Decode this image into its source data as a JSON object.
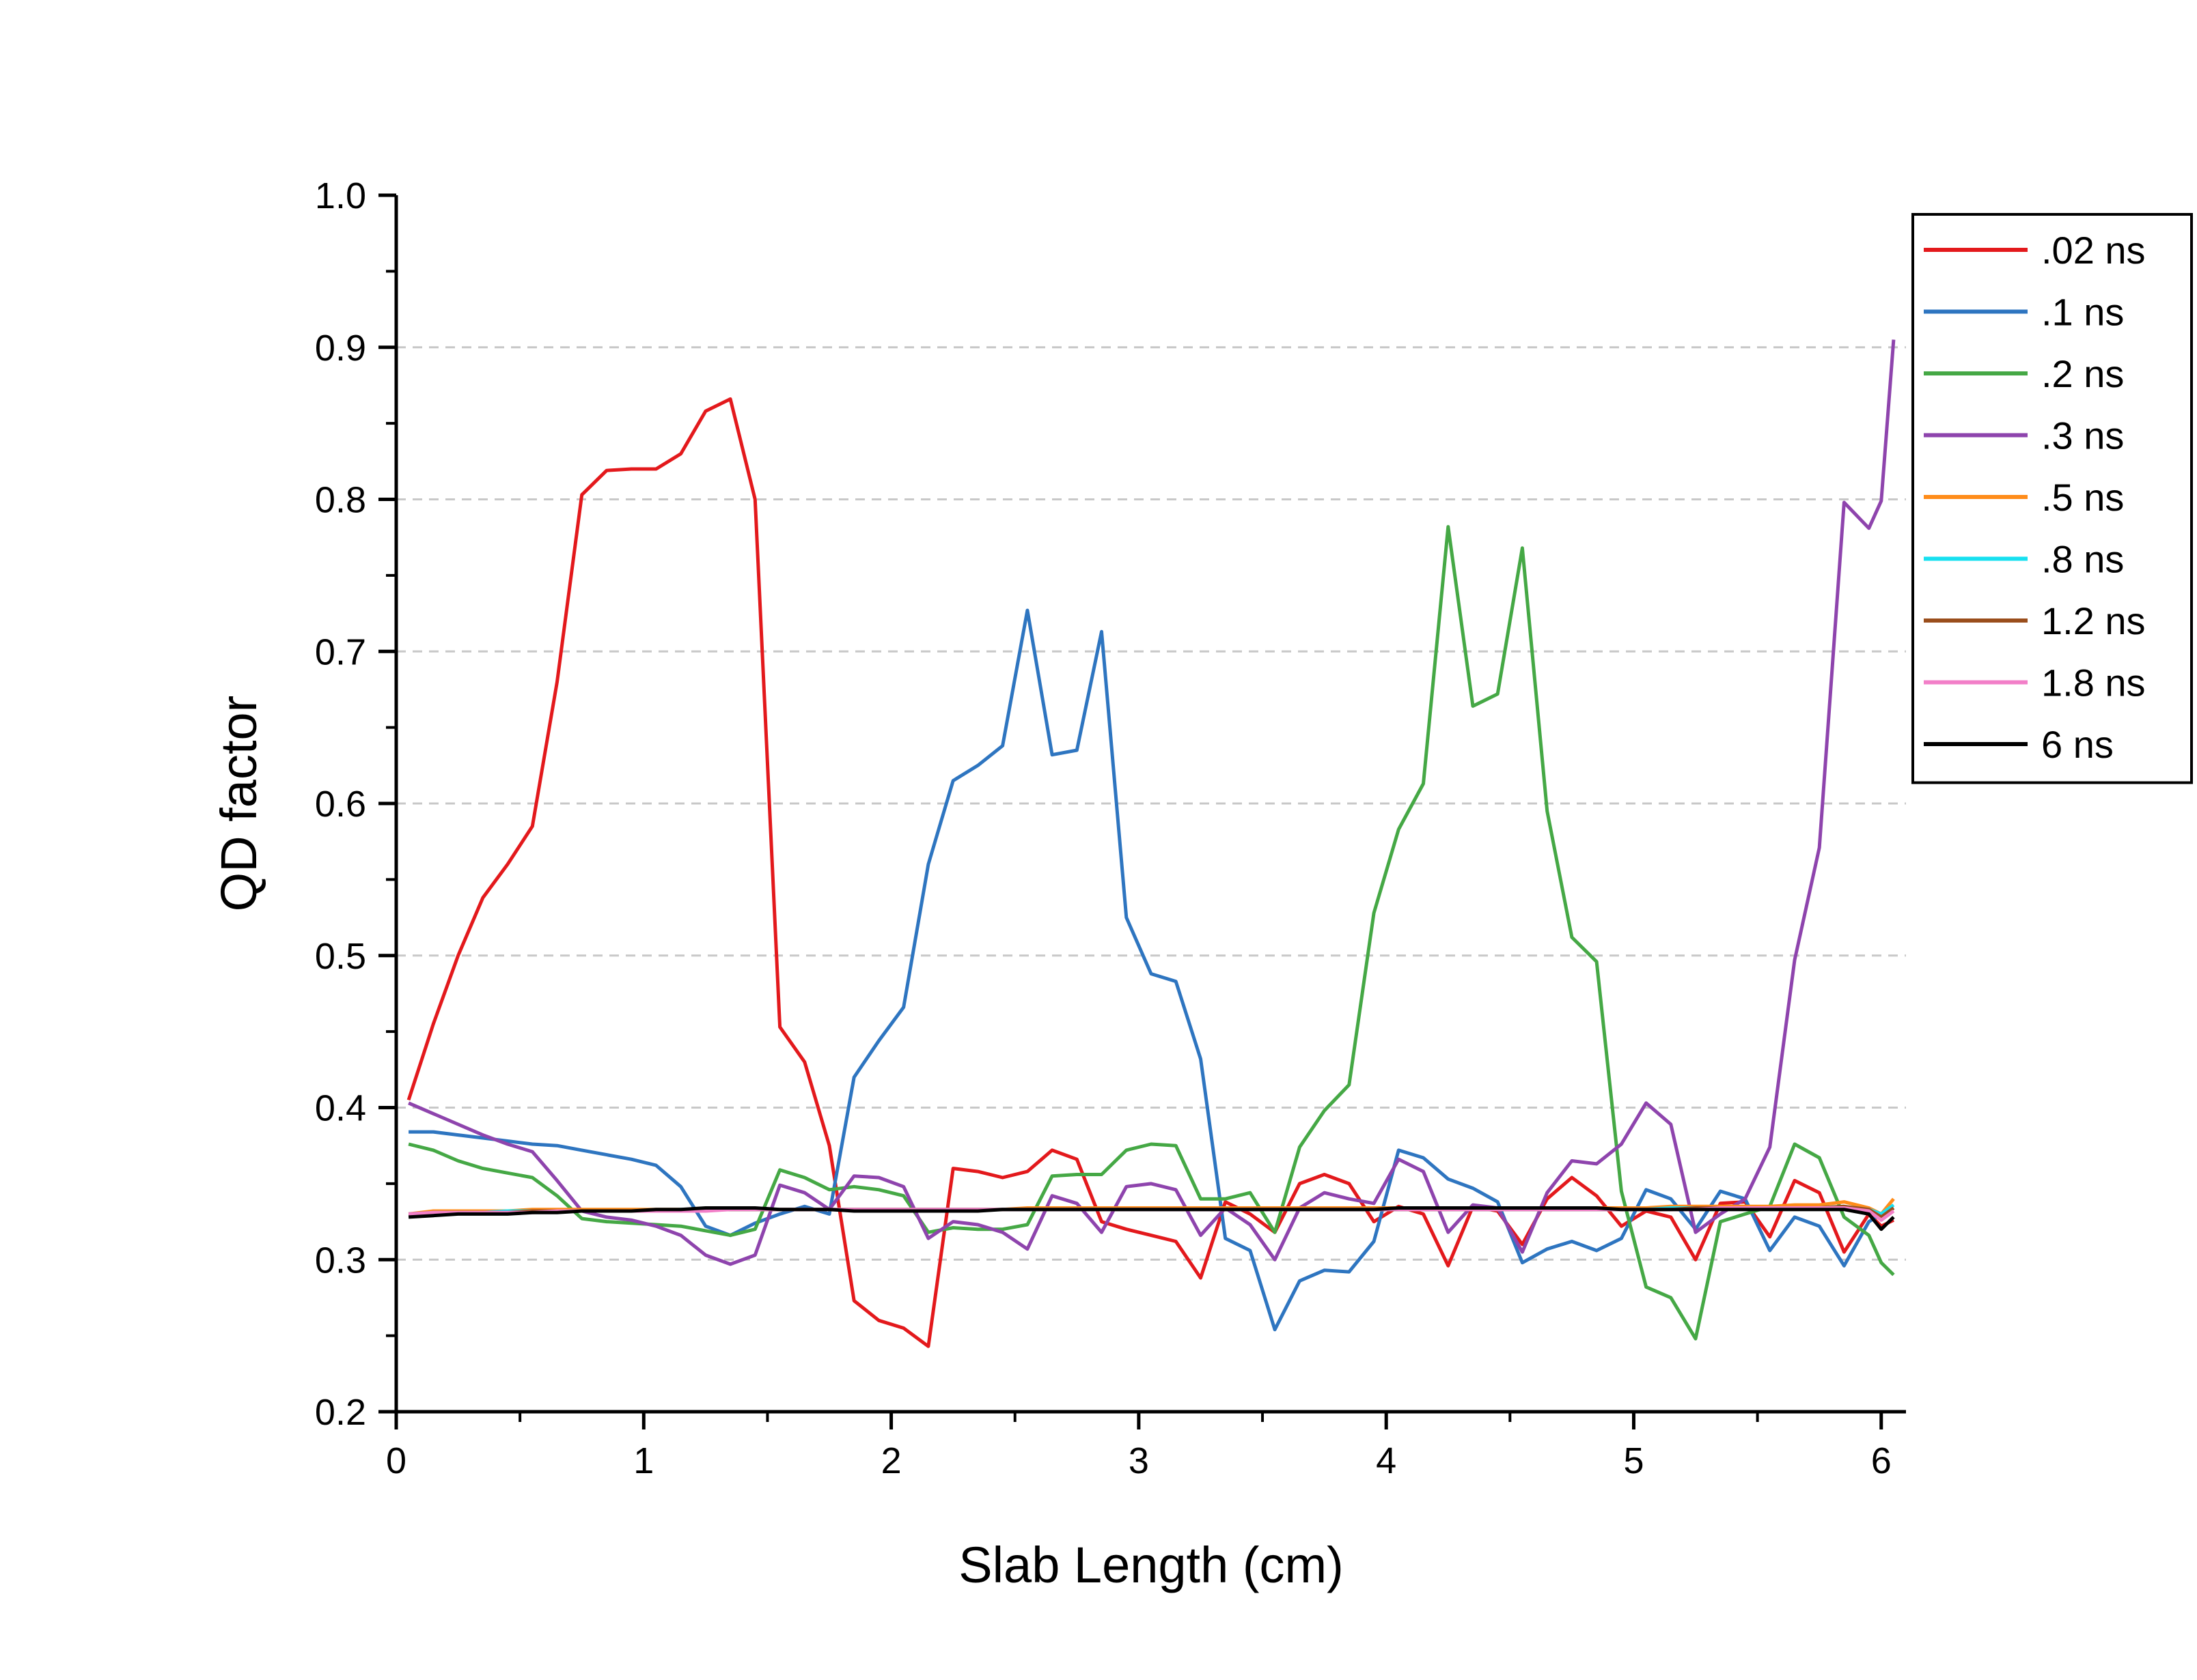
{
  "chart_data": {
    "type": "line",
    "title": "",
    "xlabel": "Slab Length (cm)",
    "ylabel": "QD factor",
    "xlim": [
      0,
      6.1
    ],
    "ylim": [
      0.2,
      1.0
    ],
    "xticks": [
      0,
      1,
      2,
      3,
      4,
      5,
      6
    ],
    "yticks": [
      0.2,
      0.3,
      0.4,
      0.5,
      0.6,
      0.7,
      0.8,
      0.9,
      1.0
    ],
    "xtick_labels": [
      "0",
      "1",
      "2",
      "3",
      "4",
      "5",
      "6"
    ],
    "ytick_labels": [
      "0.2",
      "0.3",
      "0.4",
      "0.5",
      "0.6",
      "0.7",
      "0.8",
      "0.9",
      "1.0"
    ],
    "grid": "horizontal dashed",
    "legend_position": "top-right",
    "x": [
      0.05,
      0.15,
      0.25,
      0.35,
      0.45,
      0.55,
      0.65,
      0.75,
      0.85,
      0.95,
      1.05,
      1.15,
      1.25,
      1.35,
      1.45,
      1.55,
      1.65,
      1.75,
      1.85,
      1.95,
      2.05,
      2.15,
      2.25,
      2.35,
      2.45,
      2.55,
      2.65,
      2.75,
      2.85,
      2.95,
      3.05,
      3.15,
      3.25,
      3.35,
      3.45,
      3.55,
      3.65,
      3.75,
      3.85,
      3.95,
      4.05,
      4.15,
      4.25,
      4.35,
      4.45,
      4.55,
      4.65,
      4.75,
      4.85,
      4.95,
      5.05,
      5.15,
      5.25,
      5.35,
      5.45,
      5.55,
      5.65,
      5.75,
      5.85,
      5.95,
      6.0,
      6.05
    ],
    "series": [
      {
        "name": ".02 ns",
        "color": "#e3191c",
        "values": [
          0.405,
          0.455,
          0.5,
          0.538,
          0.56,
          0.585,
          0.68,
          0.803,
          0.819,
          0.82,
          0.82,
          0.83,
          0.858,
          0.866,
          0.8,
          0.453,
          0.43,
          0.375,
          0.273,
          0.26,
          0.255,
          0.243,
          0.36,
          0.358,
          0.354,
          0.358,
          0.372,
          0.366,
          0.325,
          0.32,
          0.316,
          0.312,
          0.288,
          0.338,
          0.33,
          0.318,
          0.35,
          0.356,
          0.35,
          0.325,
          0.335,
          0.33,
          0.296,
          0.335,
          0.332,
          0.31,
          0.34,
          0.354,
          0.342,
          0.322,
          0.332,
          0.328,
          0.3,
          0.337,
          0.338,
          0.315,
          0.352,
          0.344,
          0.305,
          0.33,
          0.322,
          0.326
        ]
      },
      {
        "name": ".1 ns",
        "color": "#2e75c0",
        "values": [
          0.384,
          0.384,
          0.382,
          0.38,
          0.378,
          0.376,
          0.375,
          0.372,
          0.369,
          0.366,
          0.362,
          0.348,
          0.322,
          0.316,
          0.324,
          0.33,
          0.335,
          0.33,
          0.42,
          0.444,
          0.466,
          0.56,
          0.615,
          0.625,
          0.638,
          0.727,
          0.632,
          0.635,
          0.713,
          0.525,
          0.488,
          0.483,
          0.432,
          0.314,
          0.306,
          0.254,
          0.286,
          0.293,
          0.292,
          0.312,
          0.372,
          0.367,
          0.353,
          0.347,
          0.338,
          0.298,
          0.307,
          0.312,
          0.306,
          0.314,
          0.346,
          0.34,
          0.32,
          0.345,
          0.34,
          0.306,
          0.328,
          0.322,
          0.296,
          0.325,
          0.33,
          0.334
        ]
      },
      {
        "name": ".2 ns",
        "color": "#45a845",
        "values": [
          0.376,
          0.372,
          0.365,
          0.36,
          0.357,
          0.354,
          0.342,
          0.327,
          0.325,
          0.324,
          0.323,
          0.322,
          0.319,
          0.316,
          0.32,
          0.359,
          0.354,
          0.346,
          0.348,
          0.346,
          0.342,
          0.318,
          0.321,
          0.32,
          0.32,
          0.323,
          0.355,
          0.356,
          0.356,
          0.372,
          0.376,
          0.375,
          0.34,
          0.34,
          0.344,
          0.318,
          0.374,
          0.398,
          0.415,
          0.528,
          0.583,
          0.613,
          0.782,
          0.664,
          0.672,
          0.768,
          0.595,
          0.512,
          0.496,
          0.345,
          0.282,
          0.275,
          0.248,
          0.325,
          0.33,
          0.335,
          0.376,
          0.367,
          0.328,
          0.316,
          0.298,
          0.29
        ]
      },
      {
        "name": ".3 ns",
        "color": "#8e44ad",
        "values": [
          0.403,
          0.396,
          0.389,
          0.382,
          0.376,
          0.371,
          0.352,
          0.332,
          0.328,
          0.326,
          0.322,
          0.316,
          0.303,
          0.297,
          0.303,
          0.349,
          0.344,
          0.333,
          0.355,
          0.354,
          0.348,
          0.314,
          0.325,
          0.323,
          0.318,
          0.307,
          0.342,
          0.337,
          0.318,
          0.348,
          0.35,
          0.346,
          0.316,
          0.334,
          0.323,
          0.3,
          0.334,
          0.344,
          0.34,
          0.337,
          0.366,
          0.358,
          0.318,
          0.336,
          0.334,
          0.305,
          0.344,
          0.365,
          0.363,
          0.376,
          0.403,
          0.389,
          0.318,
          0.33,
          0.34,
          0.374,
          0.497,
          0.571,
          0.798,
          0.781,
          0.799,
          0.905
        ]
      },
      {
        "name": ".5 ns",
        "color": "#ff8c1a",
        "values": [
          0.33,
          0.332,
          0.332,
          0.332,
          0.332,
          0.333,
          0.333,
          0.333,
          0.333,
          0.333,
          0.333,
          0.333,
          0.333,
          0.333,
          0.333,
          0.333,
          0.333,
          0.333,
          0.333,
          0.333,
          0.333,
          0.333,
          0.333,
          0.333,
          0.333,
          0.334,
          0.334,
          0.334,
          0.334,
          0.334,
          0.334,
          0.334,
          0.334,
          0.334,
          0.334,
          0.334,
          0.334,
          0.334,
          0.334,
          0.334,
          0.334,
          0.334,
          0.334,
          0.334,
          0.334,
          0.334,
          0.334,
          0.334,
          0.334,
          0.334,
          0.334,
          0.335,
          0.335,
          0.335,
          0.335,
          0.335,
          0.336,
          0.336,
          0.338,
          0.334,
          0.33,
          0.34
        ]
      },
      {
        "name": ".8 ns",
        "color": "#17e0f0",
        "values": [
          0.33,
          0.331,
          0.331,
          0.331,
          0.332,
          0.332,
          0.332,
          0.332,
          0.332,
          0.332,
          0.332,
          0.333,
          0.333,
          0.333,
          0.333,
          0.333,
          0.333,
          0.333,
          0.333,
          0.333,
          0.333,
          0.333,
          0.333,
          0.333,
          0.333,
          0.333,
          0.333,
          0.333,
          0.333,
          0.333,
          0.333,
          0.333,
          0.333,
          0.333,
          0.333,
          0.333,
          0.333,
          0.333,
          0.333,
          0.333,
          0.333,
          0.333,
          0.333,
          0.333,
          0.333,
          0.333,
          0.333,
          0.333,
          0.333,
          0.333,
          0.333,
          0.334,
          0.334,
          0.334,
          0.334,
          0.334,
          0.334,
          0.334,
          0.335,
          0.333,
          0.33,
          0.336
        ]
      },
      {
        "name": "1.2 ns",
        "color": "#9a4e1c",
        "values": [
          0.33,
          0.331,
          0.331,
          0.331,
          0.331,
          0.332,
          0.332,
          0.332,
          0.332,
          0.332,
          0.332,
          0.332,
          0.333,
          0.333,
          0.333,
          0.333,
          0.333,
          0.333,
          0.333,
          0.333,
          0.333,
          0.333,
          0.333,
          0.333,
          0.333,
          0.333,
          0.333,
          0.333,
          0.333,
          0.333,
          0.333,
          0.333,
          0.333,
          0.333,
          0.333,
          0.333,
          0.333,
          0.333,
          0.333,
          0.333,
          0.333,
          0.333,
          0.333,
          0.333,
          0.333,
          0.333,
          0.333,
          0.333,
          0.333,
          0.333,
          0.333,
          0.333,
          0.334,
          0.334,
          0.334,
          0.334,
          0.334,
          0.334,
          0.335,
          0.333,
          0.328,
          0.334
        ]
      },
      {
        "name": "1.8 ns",
        "color": "#f27fc8",
        "values": [
          0.33,
          0.331,
          0.331,
          0.331,
          0.331,
          0.331,
          0.332,
          0.332,
          0.332,
          0.332,
          0.332,
          0.332,
          0.332,
          0.333,
          0.333,
          0.333,
          0.333,
          0.333,
          0.333,
          0.333,
          0.333,
          0.333,
          0.333,
          0.333,
          0.333,
          0.333,
          0.333,
          0.333,
          0.333,
          0.333,
          0.333,
          0.333,
          0.333,
          0.333,
          0.333,
          0.333,
          0.333,
          0.333,
          0.333,
          0.333,
          0.333,
          0.333,
          0.333,
          0.333,
          0.333,
          0.333,
          0.333,
          0.333,
          0.333,
          0.333,
          0.333,
          0.333,
          0.333,
          0.334,
          0.334,
          0.334,
          0.334,
          0.334,
          0.334,
          0.332,
          0.326,
          0.332
        ]
      },
      {
        "name": "6 ns",
        "color": "#000000",
        "values": [
          0.328,
          0.329,
          0.33,
          0.33,
          0.33,
          0.331,
          0.331,
          0.332,
          0.332,
          0.332,
          0.333,
          0.333,
          0.334,
          0.334,
          0.334,
          0.333,
          0.333,
          0.333,
          0.332,
          0.332,
          0.332,
          0.332,
          0.332,
          0.332,
          0.333,
          0.333,
          0.333,
          0.333,
          0.333,
          0.333,
          0.333,
          0.333,
          0.333,
          0.333,
          0.333,
          0.333,
          0.333,
          0.333,
          0.333,
          0.333,
          0.334,
          0.334,
          0.334,
          0.334,
          0.334,
          0.334,
          0.334,
          0.334,
          0.334,
          0.333,
          0.333,
          0.333,
          0.333,
          0.333,
          0.333,
          0.333,
          0.333,
          0.333,
          0.333,
          0.33,
          0.32,
          0.328
        ]
      }
    ]
  }
}
